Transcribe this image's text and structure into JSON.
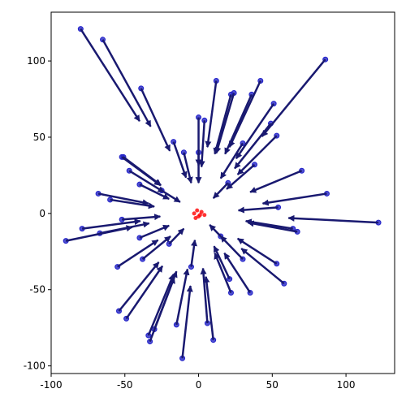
{
  "chart_data": {
    "type": "quiver",
    "x": [
      -80,
      -65,
      -39,
      12,
      22,
      24,
      42,
      36,
      51,
      86,
      0,
      4,
      49,
      53,
      -17,
      -10,
      0,
      -51,
      -52,
      70,
      -47,
      -40,
      -68,
      -60,
      87,
      54,
      -52,
      -79,
      -90,
      -67,
      122,
      67,
      64,
      -40,
      -38,
      -55,
      53,
      58,
      35,
      -54,
      -49,
      -34,
      -33,
      -30,
      -15,
      -11,
      10,
      6,
      21,
      22,
      -5,
      30,
      -20,
      20,
      30,
      -25,
      15,
      38
    ],
    "y": [
      121,
      114,
      82,
      87,
      78,
      79,
      87,
      78,
      72,
      101,
      63,
      61,
      59,
      51,
      47,
      40,
      40,
      37,
      37,
      28,
      28,
      19,
      13,
      9,
      13,
      4,
      -4,
      -10,
      -18,
      -13,
      -6,
      -12,
      -10,
      -16,
      -30,
      -35,
      -33,
      -46,
      -52,
      -64,
      -69,
      -80,
      -84,
      -76,
      -73,
      -95,
      -83,
      -72,
      -43,
      -52,
      -35,
      -30,
      -20,
      20,
      46,
      15,
      -15,
      32
    ],
    "u": [
      40,
      32.5,
      19.5,
      -6,
      -11,
      -12,
      -21,
      -18,
      -25.5,
      -43,
      0,
      -2,
      -24.5,
      -26.5,
      8.5,
      5,
      0,
      25.5,
      26,
      -35,
      23.5,
      20,
      34,
      30,
      -43.5,
      -27,
      26,
      39.5,
      45,
      33.5,
      -61,
      -33.5,
      -32,
      20,
      19,
      27.5,
      -26.5,
      -29,
      -17.5,
      27,
      24.5,
      17,
      16.5,
      15,
      7.5,
      5.5,
      -5,
      -3,
      -10.5,
      -11,
      2.5,
      -15,
      10,
      -10,
      -15,
      12.5,
      -7.5,
      -19
    ],
    "v": [
      -60.5,
      -57,
      -41,
      -43.5,
      -39,
      -39.5,
      -43.5,
      -39,
      -36,
      -50.5,
      -31.5,
      -30.5,
      -29.5,
      -25.5,
      -23.5,
      -20,
      -20,
      -18.5,
      -18.5,
      -14,
      -14,
      -9.5,
      -6.5,
      -4.5,
      -6.5,
      -2,
      2,
      5,
      9,
      6.5,
      3,
      6,
      5,
      8,
      15,
      17.5,
      16.5,
      23,
      26,
      32,
      34.5,
      40,
      42,
      38,
      36.5,
      47.5,
      41.5,
      36,
      21.5,
      26,
      17.5,
      15,
      10,
      -10,
      -23,
      -7.5,
      7.5,
      -16
    ],
    "point_color": "#2323c8",
    "arrow_color": "#191970",
    "center_points": {
      "x": [
        -3,
        0,
        2,
        -1,
        4,
        -2,
        1
      ],
      "y": [
        0,
        -2,
        1,
        2,
        -1,
        -3,
        -1
      ],
      "color": "#ff0000"
    },
    "xlim": [
      -100,
      133
    ],
    "ylim": [
      -105,
      132
    ],
    "xticks": [
      -100,
      -50,
      0,
      50,
      100
    ],
    "yticks": [
      -100,
      -50,
      0,
      50,
      100
    ],
    "grid": false
  }
}
